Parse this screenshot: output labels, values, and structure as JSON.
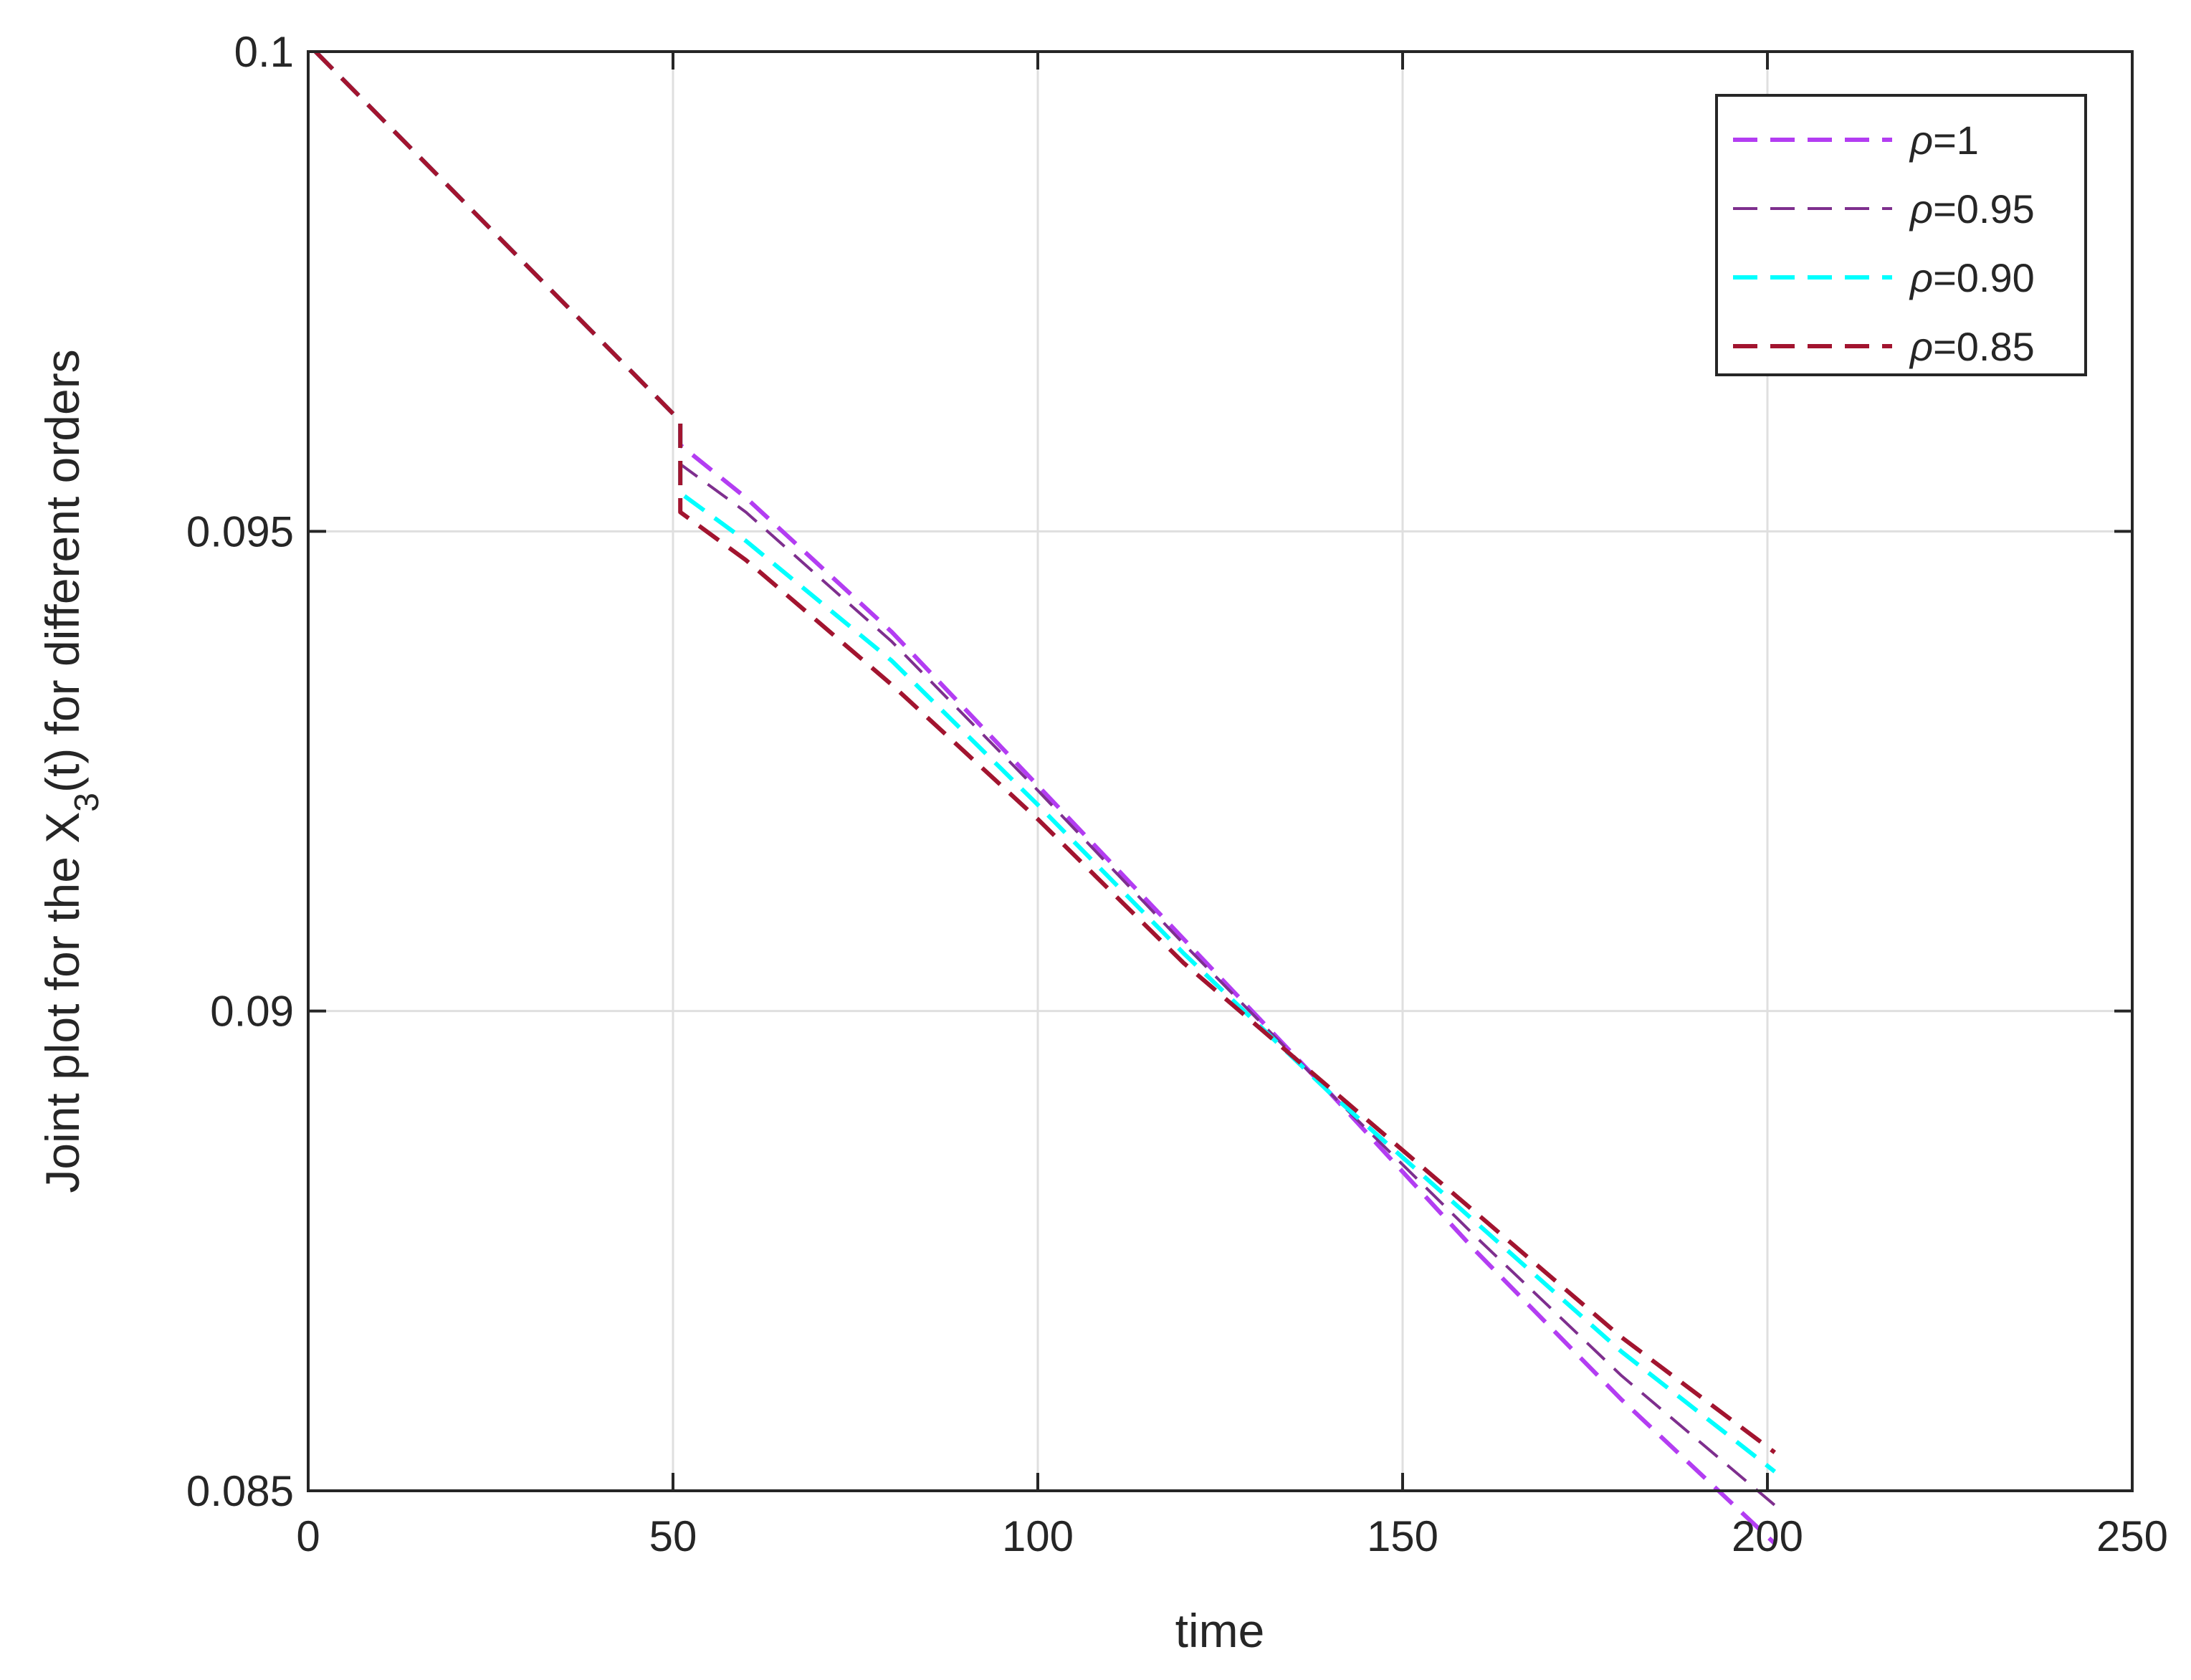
{
  "chart_data": {
    "type": "line",
    "title": "",
    "xlabel": "time",
    "ylabel": {
      "prefix": "Joint plot for the X",
      "subscript": "3",
      "suffix": "(t)  for different  orders"
    },
    "xlim": [
      0,
      250
    ],
    "ylim": [
      0.085,
      0.1
    ],
    "xticks": [
      0,
      50,
      100,
      150,
      200,
      250
    ],
    "xtick_labels": [
      "0",
      "50",
      "100",
      "150",
      "200",
      "250"
    ],
    "yticks": [
      0.085,
      0.09,
      0.095,
      0.1
    ],
    "ytick_labels": [
      "0.085",
      "0.09",
      "0.095",
      "0.1"
    ],
    "grid": true,
    "legend_position": "top-right",
    "series": [
      {
        "name": "ρ=1",
        "symbol": "ρ",
        "label_rest": "=1",
        "color": "#b33df2",
        "dashed": true,
        "x": [
          1,
          51,
          51,
          60,
          80,
          100,
          120,
          140,
          160,
          180,
          201
        ],
        "y": [
          0.1,
          0.09615,
          0.0959,
          0.09535,
          0.09395,
          0.09235,
          0.09075,
          0.08915,
          0.0875,
          0.08595,
          0.08445
        ]
      },
      {
        "name": "ρ=0.95",
        "symbol": "ρ",
        "label_rest": "=0.95",
        "color": "#7e2f8e",
        "dashed": true,
        "x": [
          1,
          51,
          51,
          60,
          80,
          100,
          120,
          140,
          160,
          180,
          201
        ],
        "y": [
          0.1,
          0.09615,
          0.0957,
          0.0952,
          0.09385,
          0.0923,
          0.0907,
          0.08915,
          0.08765,
          0.0862,
          0.08485
        ]
      },
      {
        "name": "ρ=0.90",
        "symbol": "ρ",
        "label_rest": "=0.90",
        "color": "#00ffff",
        "dashed": true,
        "x": [
          1,
          51,
          51,
          60,
          80,
          100,
          120,
          140,
          160,
          180,
          201
        ],
        "y": [
          0.1,
          0.09615,
          0.0954,
          0.0949,
          0.09365,
          0.09215,
          0.0906,
          0.08915,
          0.0878,
          0.08645,
          0.0852
        ]
      },
      {
        "name": "ρ=0.85",
        "symbol": "ρ",
        "label_rest": "=0.85",
        "color": "#a2142f",
        "dashed": true,
        "x": [
          1,
          51,
          51,
          60,
          80,
          100,
          120,
          140,
          160,
          180,
          201
        ],
        "y": [
          0.1,
          0.09615,
          0.0952,
          0.0947,
          0.0934,
          0.092,
          0.0905,
          0.0892,
          0.0879,
          0.0866,
          0.0854
        ]
      }
    ]
  }
}
